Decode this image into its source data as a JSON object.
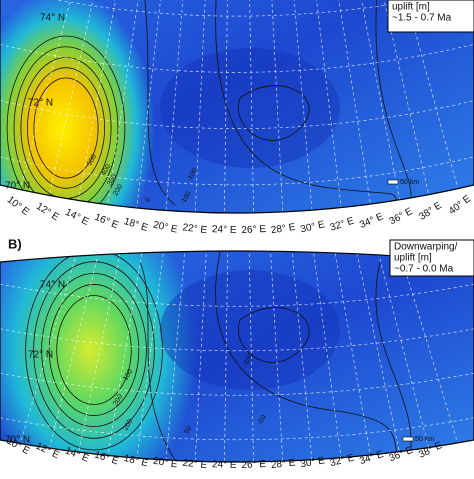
{
  "panels": [
    {
      "label": null,
      "legend": [
        "uplift [m]",
        "~1.5 - 0.7 Ma"
      ],
      "lat_labels": [
        "74° N",
        "72° N",
        "70° N"
      ],
      "lon_labels": [
        "10° E",
        "12° E",
        "14° E",
        "16° E",
        "18° E",
        "20° E",
        "22° E",
        "24° E",
        "26° E",
        "28° E",
        "30° E",
        "32° E",
        "34° E",
        "36° E",
        "38° E",
        "40° E"
      ],
      "contour_labels": [
        "500",
        "400",
        "300",
        "200",
        "0",
        "-100",
        "-100"
      ],
      "scale": "50 km"
    },
    {
      "label": "B)",
      "legend": [
        "Downwarping/",
        "uplift [m]",
        "~0.7 - 0.0 Ma"
      ],
      "lat_labels": [
        "74° N",
        "72° N",
        "70° N"
      ],
      "lon_labels": [
        "10° E",
        "12° E",
        "14° E",
        "16° E",
        "18° E",
        "20° E",
        "22° E",
        "24° E",
        "26° E",
        "28° E",
        "30° E",
        "32° E",
        "34° E",
        "36° E",
        "38° E"
      ],
      "contour_labels": [
        "300",
        "200",
        "100",
        "50",
        "-100",
        "-50"
      ],
      "scale": "50 km"
    }
  ]
}
